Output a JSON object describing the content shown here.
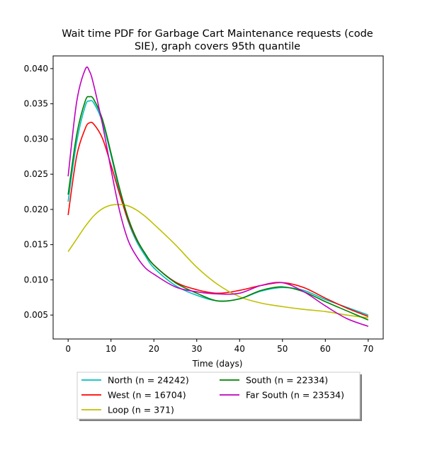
{
  "chart_data": {
    "type": "line",
    "title": "Wait time PDF for Garbage Cart Maintenance  requests (code SIE), graph covers 95th quantile",
    "title_lines": [
      "Wait time PDF for Garbage Cart Maintenance  requests (code",
      "SIE), graph covers 95th quantile"
    ],
    "xlabel": "Time (days)",
    "ylabel": "",
    "xlim": [
      -3.5,
      73.5
    ],
    "ylim": [
      0.0016,
      0.0418
    ],
    "xticks": [
      0,
      10,
      20,
      30,
      40,
      50,
      60,
      70
    ],
    "xtick_labels": [
      "0",
      "10",
      "20",
      "30",
      "40",
      "50",
      "60",
      "70"
    ],
    "yticks": [
      0.005,
      0.01,
      0.015,
      0.02,
      0.025,
      0.03,
      0.035,
      0.04
    ],
    "ytick_labels": [
      "0.005",
      "0.010",
      "0.015",
      "0.020",
      "0.025",
      "0.030",
      "0.035",
      "0.040"
    ],
    "grid": false,
    "legend_placement": "below plot, two columns, shadowed frame",
    "series": [
      {
        "name": "North (n = 24242)",
        "color": "#00bfbf",
        "x": [
          0,
          2,
          4,
          5,
          6,
          8,
          10,
          12,
          14,
          16,
          18,
          20,
          25,
          30,
          35,
          40,
          45,
          50,
          55,
          60,
          65,
          70
        ],
        "values": [
          0.0211,
          0.0296,
          0.0347,
          0.0354,
          0.0351,
          0.0324,
          0.0277,
          0.0225,
          0.0183,
          0.0154,
          0.0134,
          0.0117,
          0.0092,
          0.0078,
          0.007,
          0.0073,
          0.0084,
          0.0089,
          0.0085,
          0.0072,
          0.0061,
          0.005
        ]
      },
      {
        "name": "West (n = 16704)",
        "color": "#ff0000",
        "x": [
          0,
          2,
          4,
          5,
          6,
          8,
          10,
          12,
          14,
          16,
          18,
          20,
          25,
          30,
          35,
          40,
          45,
          50,
          55,
          60,
          65,
          70
        ],
        "values": [
          0.0192,
          0.0276,
          0.0315,
          0.0323,
          0.0321,
          0.0301,
          0.0263,
          0.0222,
          0.0185,
          0.0157,
          0.0137,
          0.0121,
          0.0097,
          0.0086,
          0.0081,
          0.0085,
          0.0092,
          0.0096,
          0.0089,
          0.0074,
          0.006,
          0.0048
        ]
      },
      {
        "name": "Loop (n = 371)",
        "color": "#bfbf00",
        "x": [
          0,
          2,
          4,
          6,
          8,
          10,
          12,
          14,
          16,
          18,
          20,
          25,
          30,
          35,
          40,
          45,
          50,
          55,
          60,
          65,
          70
        ],
        "values": [
          0.014,
          0.0158,
          0.0176,
          0.0191,
          0.0201,
          0.0206,
          0.0207,
          0.0205,
          0.0199,
          0.019,
          0.0179,
          0.015,
          0.0118,
          0.0093,
          0.0076,
          0.0067,
          0.0062,
          0.0058,
          0.0055,
          0.005,
          0.0046
        ]
      },
      {
        "name": "South (n = 22334)",
        "color": "#008000",
        "x": [
          0,
          2,
          4,
          5,
          6,
          8,
          10,
          12,
          14,
          16,
          18,
          20,
          25,
          30,
          35,
          40,
          45,
          50,
          55,
          60,
          65,
          70
        ],
        "values": [
          0.0221,
          0.0306,
          0.0354,
          0.036,
          0.0356,
          0.0328,
          0.028,
          0.023,
          0.0188,
          0.0158,
          0.0137,
          0.0121,
          0.0096,
          0.0081,
          0.007,
          0.0073,
          0.0085,
          0.009,
          0.0083,
          0.0069,
          0.0056,
          0.0043
        ]
      },
      {
        "name": "Far South (n = 23534)",
        "color": "#bf00bf",
        "x": [
          0,
          2,
          4,
          5,
          6,
          8,
          10,
          12,
          14,
          16,
          18,
          20,
          25,
          30,
          35,
          40,
          45,
          50,
          55,
          60,
          65,
          70
        ],
        "values": [
          0.0247,
          0.0353,
          0.0399,
          0.0396,
          0.0376,
          0.0321,
          0.0257,
          0.0198,
          0.0156,
          0.0133,
          0.0117,
          0.0108,
          0.009,
          0.0083,
          0.008,
          0.0081,
          0.0092,
          0.0096,
          0.0083,
          0.0063,
          0.0045,
          0.0034
        ]
      }
    ]
  }
}
